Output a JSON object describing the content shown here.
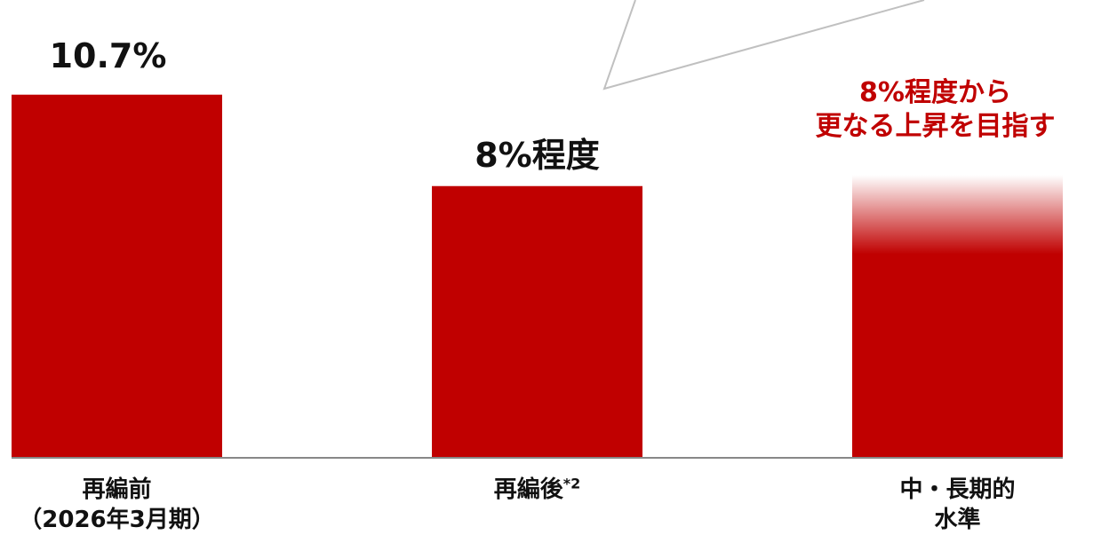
{
  "colors": {
    "bar": "#c00000",
    "axis": "#888888",
    "callout": "#c0c0c0",
    "accent_text": "#c00000"
  },
  "chart_data": {
    "type": "bar",
    "categories": [
      {
        "line1": "再編前",
        "line2": "（2026年3月期）",
        "sup": ""
      },
      {
        "line1": "再編後",
        "line2": "",
        "sup": "*2"
      },
      {
        "line1": "中・長期的",
        "line2": "水準",
        "sup": ""
      }
    ],
    "values": [
      10.7,
      8,
      8
    ],
    "value_labels": [
      "10.7%",
      "8%程度",
      ""
    ],
    "annotations": [
      {
        "bar": 2,
        "lines": [
          "8%程度から",
          "更なる上昇を目指す"
        ]
      }
    ],
    "fade_top": [
      false,
      false,
      true
    ],
    "ylim": [
      0,
      11.4
    ],
    "title": "",
    "xlabel": "",
    "ylabel": ""
  }
}
